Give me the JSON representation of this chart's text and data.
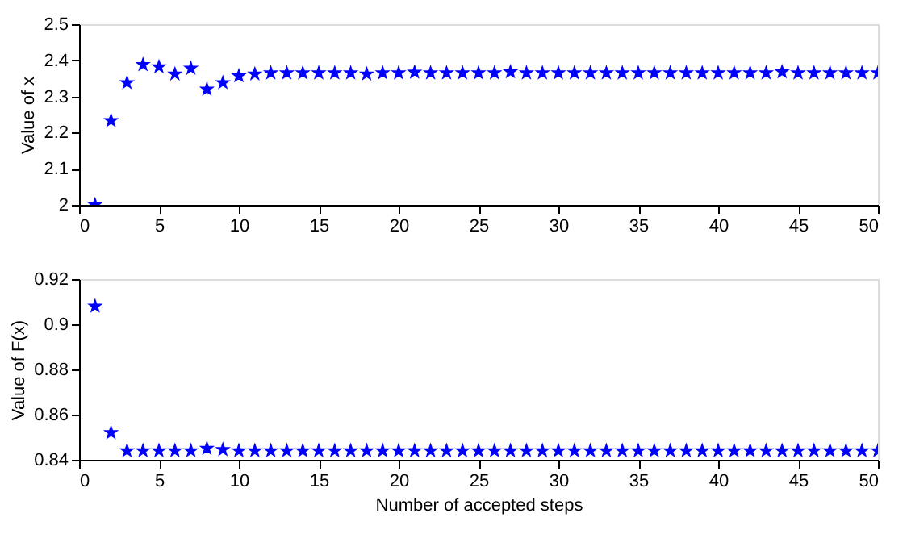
{
  "chart_data": [
    {
      "type": "scatter",
      "ylabel": "Value of x",
      "xlim": [
        0,
        50
      ],
      "xticks": [
        0,
        5,
        10,
        15,
        20,
        25,
        30,
        35,
        40,
        45,
        50
      ],
      "ylim": [
        2,
        2.5
      ],
      "yticks": [
        2,
        2.1,
        2.2,
        2.3,
        2.4,
        2.5
      ],
      "marker": "star",
      "grid": false,
      "x": [
        1,
        2,
        3,
        4,
        5,
        6,
        7,
        8,
        9,
        10,
        11,
        12,
        13,
        14,
        15,
        16,
        17,
        18,
        19,
        20,
        21,
        22,
        23,
        24,
        25,
        26,
        27,
        28,
        29,
        30,
        31,
        32,
        33,
        34,
        35,
        36,
        37,
        38,
        39,
        40,
        41,
        42,
        43,
        44,
        45,
        46,
        47,
        48,
        49,
        50
      ],
      "series": [
        {
          "color": "#0000ff",
          "values": [
            2.0,
            2.233,
            2.338,
            2.388,
            2.382,
            2.362,
            2.378,
            2.32,
            2.338,
            2.357,
            2.362,
            2.365,
            2.365,
            2.365,
            2.365,
            2.365,
            2.365,
            2.362,
            2.365,
            2.365,
            2.367,
            2.365,
            2.365,
            2.365,
            2.365,
            2.365,
            2.368,
            2.365,
            2.365,
            2.365,
            2.365,
            2.365,
            2.365,
            2.365,
            2.365,
            2.365,
            2.365,
            2.365,
            2.365,
            2.365,
            2.365,
            2.365,
            2.365,
            2.368,
            2.365,
            2.365,
            2.365,
            2.365,
            2.365,
            2.365
          ]
        }
      ]
    },
    {
      "type": "scatter",
      "ylabel": "Value of F(x)",
      "xlabel": "Number of accepted steps",
      "xlim": [
        0,
        50
      ],
      "xticks": [
        0,
        5,
        10,
        15,
        20,
        25,
        30,
        35,
        40,
        45,
        50
      ],
      "ylim": [
        0.84,
        0.92
      ],
      "yticks": [
        0.84,
        0.86,
        0.88,
        0.9,
        0.92
      ],
      "marker": "star",
      "grid": false,
      "x": [
        1,
        2,
        3,
        4,
        5,
        6,
        7,
        8,
        9,
        10,
        11,
        12,
        13,
        14,
        15,
        16,
        17,
        18,
        19,
        20,
        21,
        22,
        23,
        24,
        25,
        26,
        27,
        28,
        29,
        30,
        31,
        32,
        33,
        34,
        35,
        36,
        37,
        38,
        39,
        40,
        41,
        42,
        43,
        44,
        45,
        46,
        47,
        48,
        49,
        50
      ],
      "series": [
        {
          "color": "#0000ff",
          "values": [
            0.908,
            0.852,
            0.844,
            0.844,
            0.844,
            0.844,
            0.844,
            0.845,
            0.8445,
            0.844,
            0.844,
            0.844,
            0.844,
            0.844,
            0.844,
            0.844,
            0.844,
            0.844,
            0.844,
            0.844,
            0.844,
            0.844,
            0.844,
            0.844,
            0.844,
            0.844,
            0.844,
            0.844,
            0.844,
            0.844,
            0.844,
            0.844,
            0.844,
            0.844,
            0.844,
            0.844,
            0.844,
            0.844,
            0.844,
            0.844,
            0.844,
            0.844,
            0.844,
            0.844,
            0.844,
            0.844,
            0.844,
            0.844,
            0.844,
            0.844
          ]
        }
      ]
    }
  ]
}
